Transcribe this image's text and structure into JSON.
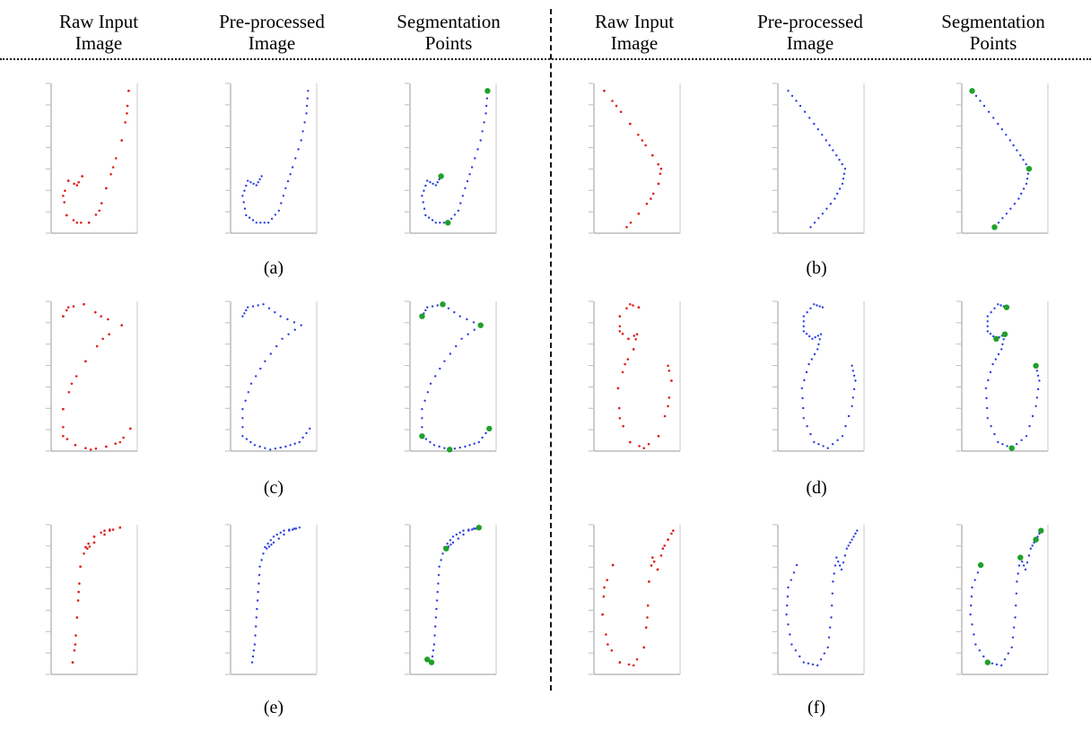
{
  "headers": [
    "Raw Input\nImage",
    "Pre-processed\nImage",
    "Segmentation\nPoints",
    "Raw Input\nImage",
    "Pre-processed\nImage",
    "Segmentation\nPoints"
  ],
  "captions": [
    "(a)",
    "(b)",
    "(c)",
    "(d)",
    "(e)",
    "(f)"
  ],
  "colors": {
    "raw": "#e02020",
    "processed": "#2b3fe0",
    "segment": "#1fa02a",
    "axis": "#9a9a9a"
  },
  "figure": {
    "type": "scatter"
  },
  "samples": [
    {
      "id": "a",
      "stroke": [
        [
          0.9,
          0.95
        ],
        [
          0.88,
          0.8
        ],
        [
          0.82,
          0.62
        ],
        [
          0.72,
          0.44
        ],
        [
          0.64,
          0.3
        ],
        [
          0.56,
          0.15
        ],
        [
          0.44,
          0.07
        ],
        [
          0.3,
          0.07
        ],
        [
          0.18,
          0.12
        ],
        [
          0.14,
          0.25
        ],
        [
          0.2,
          0.35
        ],
        [
          0.3,
          0.32
        ],
        [
          0.36,
          0.38
        ]
      ],
      "segments": [
        [
          0.9,
          0.95
        ],
        [
          0.36,
          0.38
        ],
        [
          0.44,
          0.07
        ]
      ]
    },
    {
      "id": "b",
      "stroke": [
        [
          0.12,
          0.95
        ],
        [
          0.26,
          0.85
        ],
        [
          0.42,
          0.73
        ],
        [
          0.56,
          0.62
        ],
        [
          0.68,
          0.52
        ],
        [
          0.78,
          0.43
        ],
        [
          0.75,
          0.33
        ],
        [
          0.66,
          0.23
        ],
        [
          0.52,
          0.13
        ],
        [
          0.38,
          0.04
        ]
      ],
      "segments": [
        [
          0.12,
          0.95
        ],
        [
          0.78,
          0.43
        ],
        [
          0.38,
          0.04
        ]
      ]
    },
    {
      "id": "c",
      "stroke": [
        [
          0.14,
          0.9
        ],
        [
          0.2,
          0.96
        ],
        [
          0.38,
          0.98
        ],
        [
          0.58,
          0.9
        ],
        [
          0.82,
          0.84
        ],
        [
          0.6,
          0.75
        ],
        [
          0.4,
          0.6
        ],
        [
          0.24,
          0.45
        ],
        [
          0.14,
          0.28
        ],
        [
          0.14,
          0.1
        ],
        [
          0.28,
          0.04
        ],
        [
          0.46,
          0.01
        ],
        [
          0.64,
          0.03
        ],
        [
          0.8,
          0.06
        ],
        [
          0.92,
          0.15
        ]
      ],
      "segments": [
        [
          0.14,
          0.9
        ],
        [
          0.38,
          0.98
        ],
        [
          0.82,
          0.84
        ],
        [
          0.14,
          0.1
        ],
        [
          0.46,
          0.01
        ],
        [
          0.92,
          0.15
        ]
      ]
    },
    {
      "id": "d",
      "stroke": [
        [
          0.52,
          0.96
        ],
        [
          0.42,
          0.98
        ],
        [
          0.3,
          0.9
        ],
        [
          0.3,
          0.8
        ],
        [
          0.4,
          0.75
        ],
        [
          0.5,
          0.78
        ],
        [
          0.46,
          0.68
        ],
        [
          0.36,
          0.58
        ],
        [
          0.28,
          0.42
        ],
        [
          0.3,
          0.22
        ],
        [
          0.42,
          0.06
        ],
        [
          0.58,
          0.02
        ],
        [
          0.75,
          0.1
        ],
        [
          0.86,
          0.3
        ],
        [
          0.9,
          0.47
        ],
        [
          0.86,
          0.57
        ]
      ],
      "segments": [
        [
          0.52,
          0.96
        ],
        [
          0.4,
          0.75
        ],
        [
          0.5,
          0.78
        ],
        [
          0.86,
          0.57
        ],
        [
          0.58,
          0.02
        ]
      ]
    },
    {
      "id": "e",
      "stroke": [
        [
          0.25,
          0.08
        ],
        [
          0.28,
          0.2
        ],
        [
          0.3,
          0.38
        ],
        [
          0.32,
          0.55
        ],
        [
          0.34,
          0.72
        ],
        [
          0.4,
          0.85
        ],
        [
          0.5,
          0.92
        ],
        [
          0.62,
          0.96
        ],
        [
          0.8,
          0.98
        ],
        [
          0.68,
          0.96
        ],
        [
          0.5,
          0.88
        ],
        [
          0.42,
          0.84
        ]
      ],
      "segments": [
        [
          0.25,
          0.08
        ],
        [
          0.8,
          0.98
        ],
        [
          0.42,
          0.84
        ],
        [
          0.2,
          0.1
        ]
      ]
    },
    {
      "id": "f",
      "stroke": [
        [
          0.22,
          0.73
        ],
        [
          0.12,
          0.58
        ],
        [
          0.1,
          0.4
        ],
        [
          0.16,
          0.2
        ],
        [
          0.3,
          0.08
        ],
        [
          0.46,
          0.06
        ],
        [
          0.58,
          0.18
        ],
        [
          0.62,
          0.38
        ],
        [
          0.64,
          0.62
        ],
        [
          0.68,
          0.78
        ],
        [
          0.74,
          0.7
        ],
        [
          0.8,
          0.84
        ],
        [
          0.86,
          0.9
        ],
        [
          0.92,
          0.96
        ]
      ],
      "segments": [
        [
          0.22,
          0.73
        ],
        [
          0.3,
          0.08
        ],
        [
          0.68,
          0.78
        ],
        [
          0.86,
          0.9
        ],
        [
          0.92,
          0.96
        ]
      ]
    }
  ]
}
